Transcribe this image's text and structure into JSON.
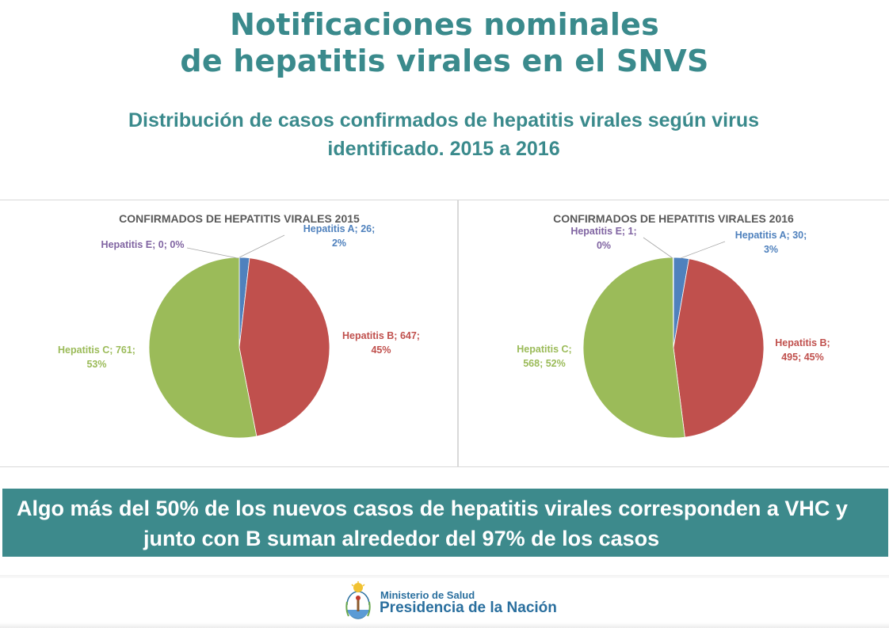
{
  "header": {
    "title_line1": "Notificaciones nominales",
    "title_line2": "de hepatitis virales en el SNVS",
    "subtitle_line1": "Distribución de casos confirmados de hepatitis virales según virus",
    "subtitle_line2": "identificado. 2015 a 2016"
  },
  "colors": {
    "accent": "#3a8a8c",
    "banner": "#3d8a8c",
    "hepatitis_a": "#4f81bd",
    "hepatitis_b": "#c0504d",
    "hepatitis_c": "#9bbb59",
    "hepatitis_e": "#8064a2"
  },
  "chart_data": [
    {
      "type": "pie",
      "title": "CONFIRMADOS DE HEPATITIS VIRALES 2015",
      "slices": [
        {
          "name": "Hepatitis A",
          "value": 26,
          "percent": "2%",
          "label_lines": [
            "Hepatitis A; 26;",
            "2%"
          ],
          "color": "#4f81bd"
        },
        {
          "name": "Hepatitis B",
          "value": 647,
          "percent": "45%",
          "label_lines": [
            "Hepatitis B; 647;",
            "45%"
          ],
          "color": "#c0504d"
        },
        {
          "name": "Hepatitis C",
          "value": 761,
          "percent": "53%",
          "label_lines": [
            "Hepatitis C; 761;",
            "53%"
          ],
          "color": "#9bbb59"
        },
        {
          "name": "Hepatitis E",
          "value": 0,
          "percent": "0%",
          "label_lines": [
            "Hepatitis E; 0; 0%"
          ],
          "color": "#8064a2"
        }
      ]
    },
    {
      "type": "pie",
      "title": "CONFIRMADOS DE HEPATITIS VIRALES 2016",
      "slices": [
        {
          "name": "Hepatitis A",
          "value": 30,
          "percent": "3%",
          "label_lines": [
            "Hepatitis A; 30;",
            "3%"
          ],
          "color": "#4f81bd"
        },
        {
          "name": "Hepatitis B",
          "value": 495,
          "percent": "45%",
          "label_lines": [
            "Hepatitis B;",
            "495; 45%"
          ],
          "color": "#c0504d"
        },
        {
          "name": "Hepatitis C",
          "value": 568,
          "percent": "52%",
          "label_lines": [
            "Hepatitis C;",
            "568; 52%"
          ],
          "color": "#9bbb59"
        },
        {
          "name": "Hepatitis E",
          "value": 1,
          "percent": "0%",
          "label_lines": [
            "Hepatitis E; 1;",
            "0%"
          ],
          "color": "#8064a2"
        }
      ]
    }
  ],
  "banner": {
    "line1": "Algo más del 50% de los nuevos casos de hepatitis virales corresponden a VHC y",
    "line2": "junto con B suman alrededor del 97% de los casos"
  },
  "footer": {
    "ministry_line1": "Ministerio de Salud",
    "ministry_line2": "Presidencia de la Nación",
    "logo_icon": "national-coat-of-arms-icon"
  }
}
